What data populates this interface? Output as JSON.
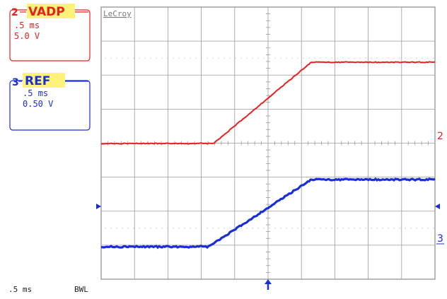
{
  "brand": "LeCroy",
  "timebase_status": ".5 ms",
  "bandwidth_limit": "BWL",
  "colors": {
    "ch2": "#e82020",
    "ch3": "#1a2ed8",
    "grid": "#9a9a9a",
    "label_bg": "#fff27a"
  },
  "channel2": {
    "number": "2",
    "label": "VADP",
    "timebase": ".5 ms",
    "volts_per_div": "5.0 V",
    "marker": "2"
  },
  "channel3": {
    "number": "3",
    "label": "REF",
    "timebase": ".5 ms",
    "volts_per_div": "0.50 V",
    "marker": "3"
  },
  "trigger_marker": "up-arrow-icon"
}
